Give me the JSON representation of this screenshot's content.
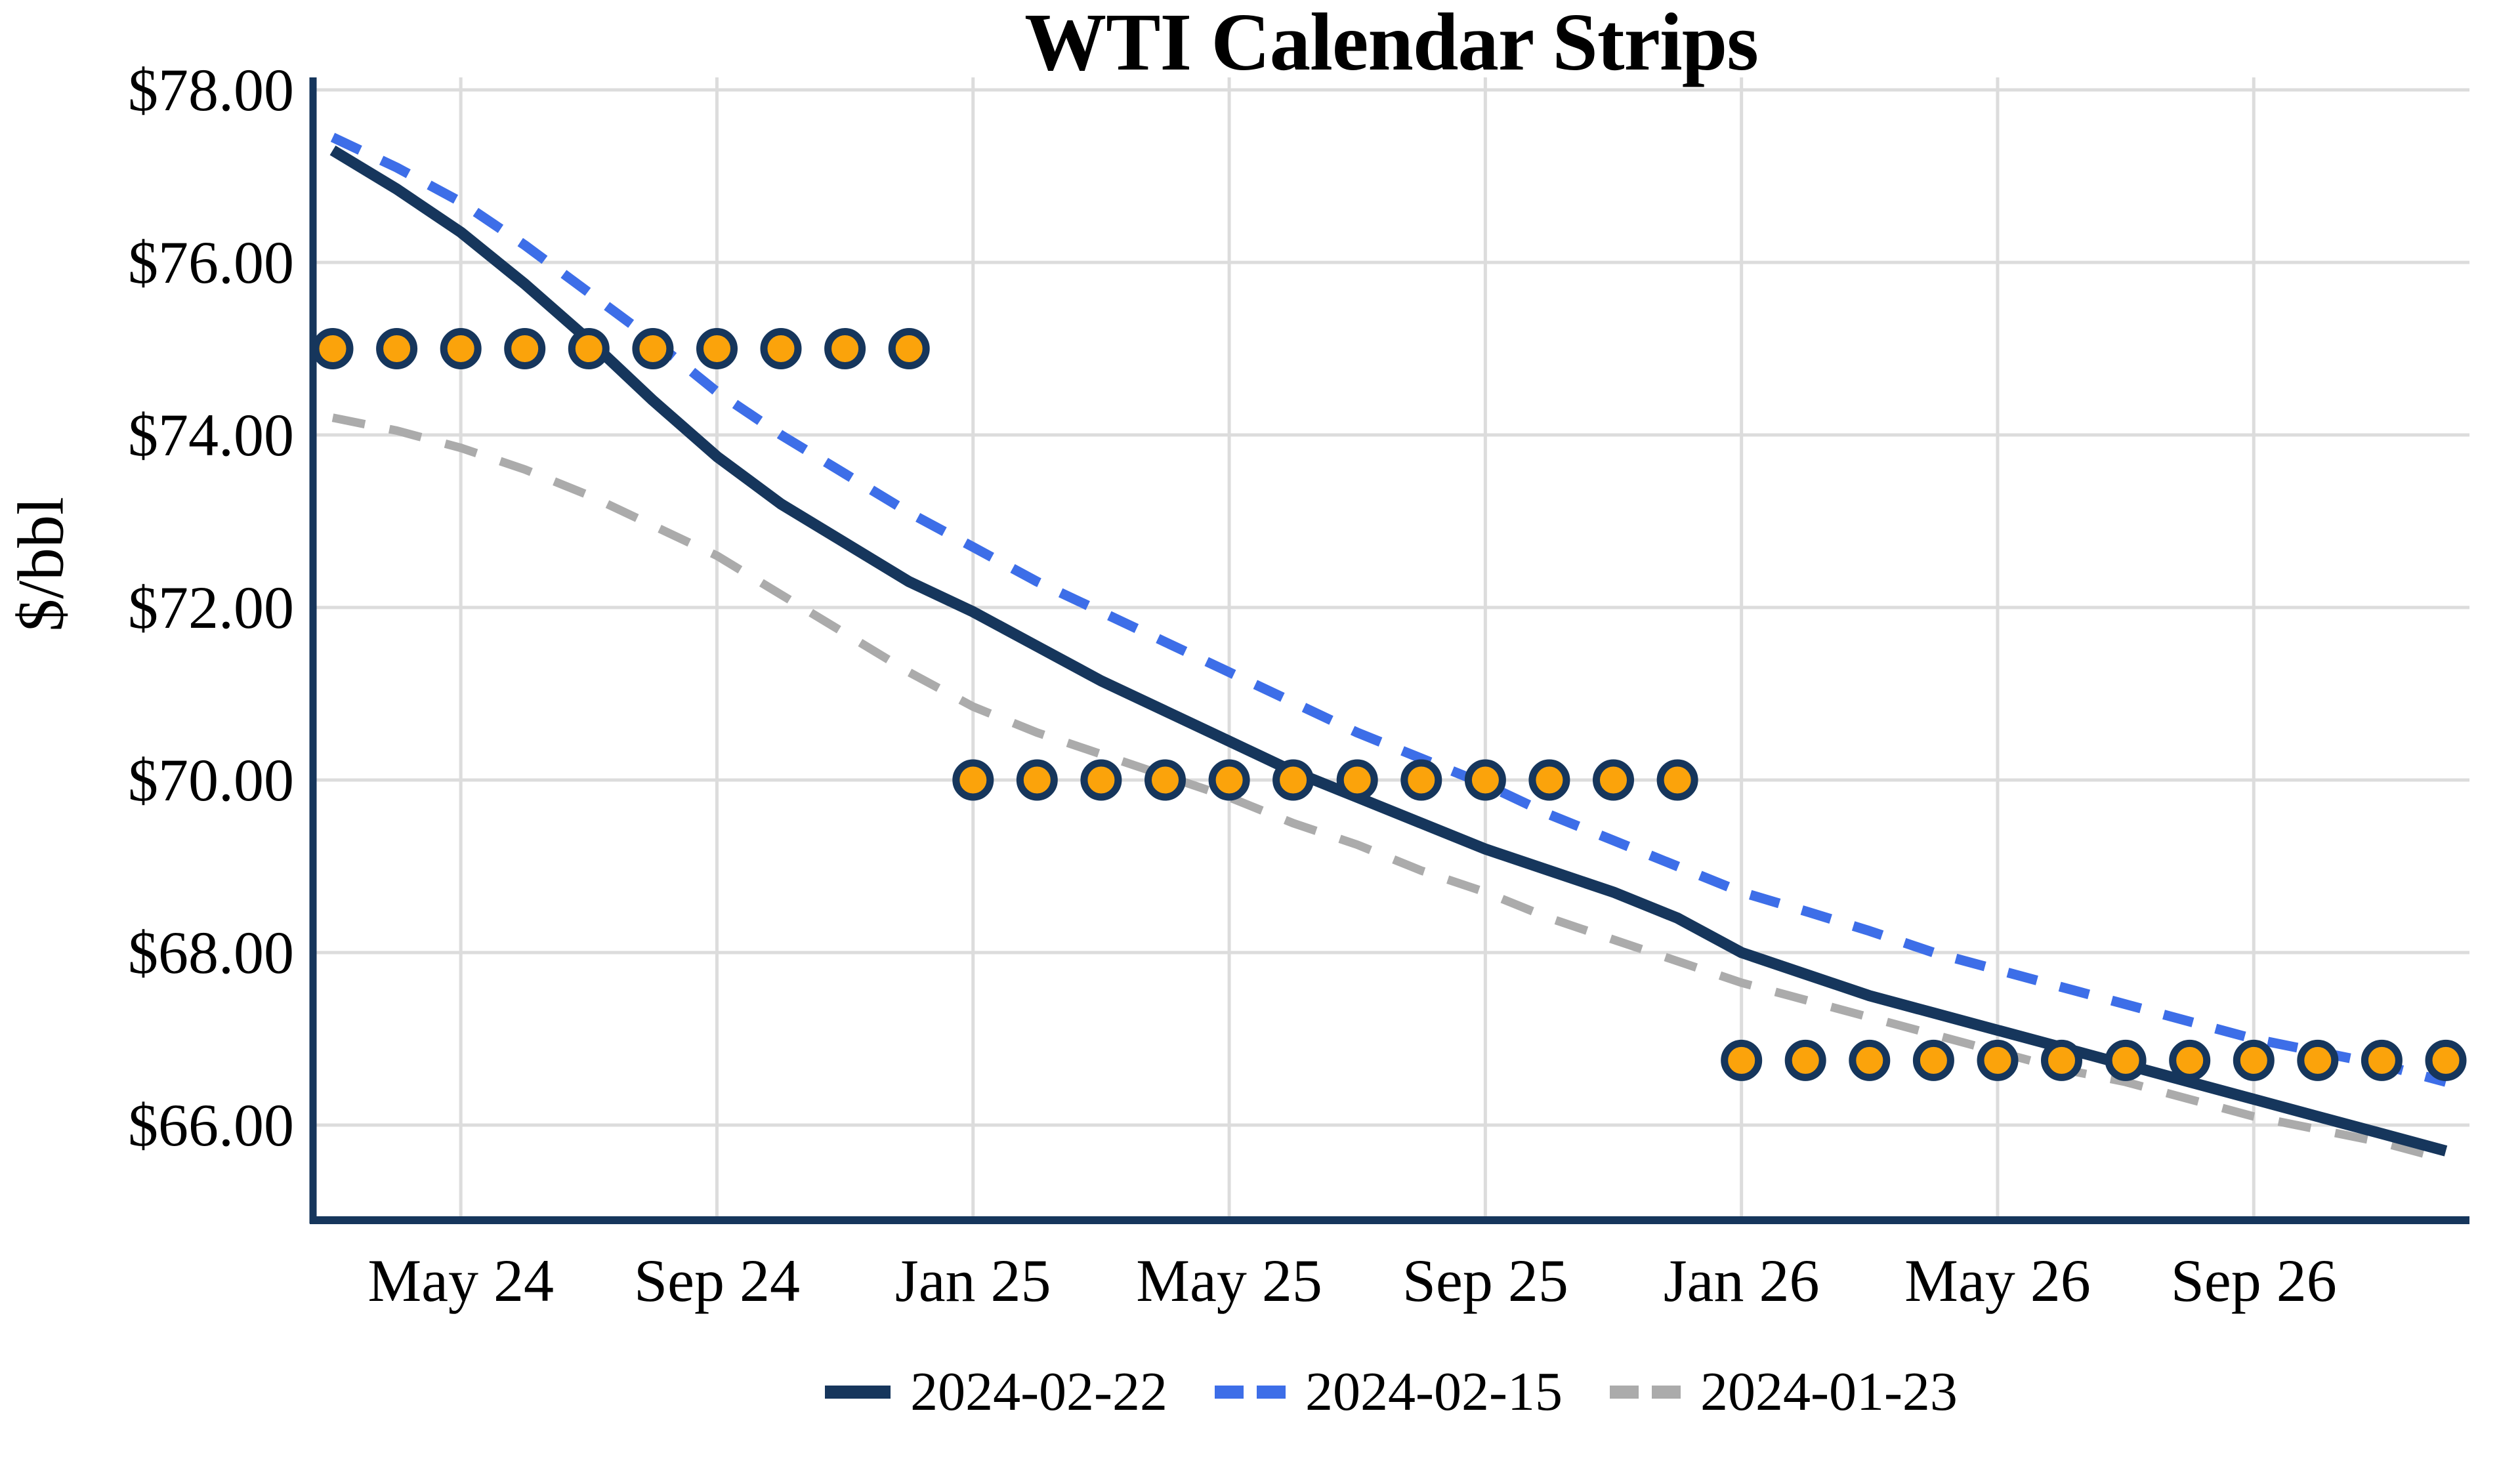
{
  "title": "WTI Calendar Strips",
  "y_axis": {
    "label": "$/bbl",
    "ticks": [
      {
        "label": "$78.00",
        "value": 78
      },
      {
        "label": "$76.00",
        "value": 76
      },
      {
        "label": "$74.00",
        "value": 74
      },
      {
        "label": "$72.00",
        "value": 72
      },
      {
        "label": "$70.00",
        "value": 70
      },
      {
        "label": "$68.00",
        "value": 68
      },
      {
        "label": "$66.00",
        "value": 66
      }
    ]
  },
  "x_axis": {
    "ticks": [
      {
        "label": "May 24",
        "month": "2024-05"
      },
      {
        "label": "Sep 24",
        "month": "2024-09"
      },
      {
        "label": "Jan 25",
        "month": "2025-01"
      },
      {
        "label": "May 25",
        "month": "2025-05"
      },
      {
        "label": "Sep 25",
        "month": "2025-09"
      },
      {
        "label": "Jan 26",
        "month": "2026-01"
      },
      {
        "label": "May 26",
        "month": "2026-05"
      },
      {
        "label": "Sep 26",
        "month": "2026-09"
      }
    ]
  },
  "legend": [
    {
      "label": "2024-02-22",
      "style": "solid",
      "color": "#16365C"
    },
    {
      "label": "2024-02-15",
      "style": "dashed",
      "color": "#3D6EE8"
    },
    {
      "label": "2024-01-23",
      "style": "dashed",
      "color": "#ABABAB"
    }
  ],
  "colors": {
    "axis": "#16365C",
    "gridline": "#DCDCDC",
    "marker_fill": "#FBA30B",
    "marker_border": "#16365C",
    "background": "#FFFFFF",
    "text": "#000000"
  },
  "chart_data": {
    "type": "line",
    "title": "WTI Calendar Strips",
    "xlabel": "",
    "ylabel": "$/bbl",
    "ylim": [
      64.9,
      78.15
    ],
    "grid": true,
    "legend_position": "bottom",
    "x_months": [
      "2024-03",
      "2024-04",
      "2024-05",
      "2024-06",
      "2024-07",
      "2024-08",
      "2024-09",
      "2024-10",
      "2024-11",
      "2024-12",
      "2025-01",
      "2025-02",
      "2025-03",
      "2025-04",
      "2025-05",
      "2025-06",
      "2025-07",
      "2025-08",
      "2025-09",
      "2025-10",
      "2025-11",
      "2025-12",
      "2026-01",
      "2026-02",
      "2026-03",
      "2026-04",
      "2026-05",
      "2026-06",
      "2026-07",
      "2026-08",
      "2026-09",
      "2026-10",
      "2026-11",
      "2026-12"
    ],
    "series": [
      {
        "name": "2024-02-22",
        "style": "solid",
        "color": "#16365C",
        "values": [
          77.3,
          76.85,
          76.35,
          75.75,
          75.1,
          74.4,
          73.75,
          73.2,
          72.75,
          72.3,
          71.95,
          71.55,
          71.15,
          70.8,
          70.45,
          70.1,
          69.8,
          69.5,
          69.2,
          68.95,
          68.7,
          68.4,
          68.0,
          67.75,
          67.5,
          67.3,
          67.1,
          66.9,
          66.7,
          66.5,
          66.3,
          66.1,
          65.9,
          65.7
        ]
      },
      {
        "name": "2024-02-15",
        "style": "dashed",
        "color": "#3D6EE8",
        "values": [
          77.45,
          77.1,
          76.7,
          76.2,
          75.65,
          75.1,
          74.5,
          74.0,
          73.55,
          73.1,
          72.7,
          72.3,
          71.95,
          71.6,
          71.25,
          70.9,
          70.55,
          70.25,
          69.95,
          69.6,
          69.3,
          69.0,
          68.7,
          68.48,
          68.25,
          68.0,
          67.8,
          67.6,
          67.4,
          67.2,
          67.0,
          66.85,
          66.7,
          66.5
        ]
      },
      {
        "name": "2024-01-23",
        "style": "dashed",
        "color": "#ABABAB",
        "values": [
          74.2,
          74.05,
          73.85,
          73.6,
          73.3,
          72.95,
          72.6,
          72.15,
          71.7,
          71.25,
          70.85,
          70.55,
          70.3,
          70.05,
          69.8,
          69.5,
          69.25,
          68.95,
          68.7,
          68.4,
          68.15,
          67.9,
          67.65,
          67.45,
          67.25,
          67.05,
          66.85,
          66.65,
          66.5,
          66.3,
          66.1,
          65.95,
          65.8,
          65.6
        ]
      }
    ],
    "marker_strips": [
      {
        "value": 75.0,
        "from": "2024-03",
        "to": "2024-12"
      },
      {
        "value": 70.0,
        "from": "2025-01",
        "to": "2025-12"
      },
      {
        "value": 66.75,
        "from": "2026-01",
        "to": "2026-12"
      }
    ]
  }
}
